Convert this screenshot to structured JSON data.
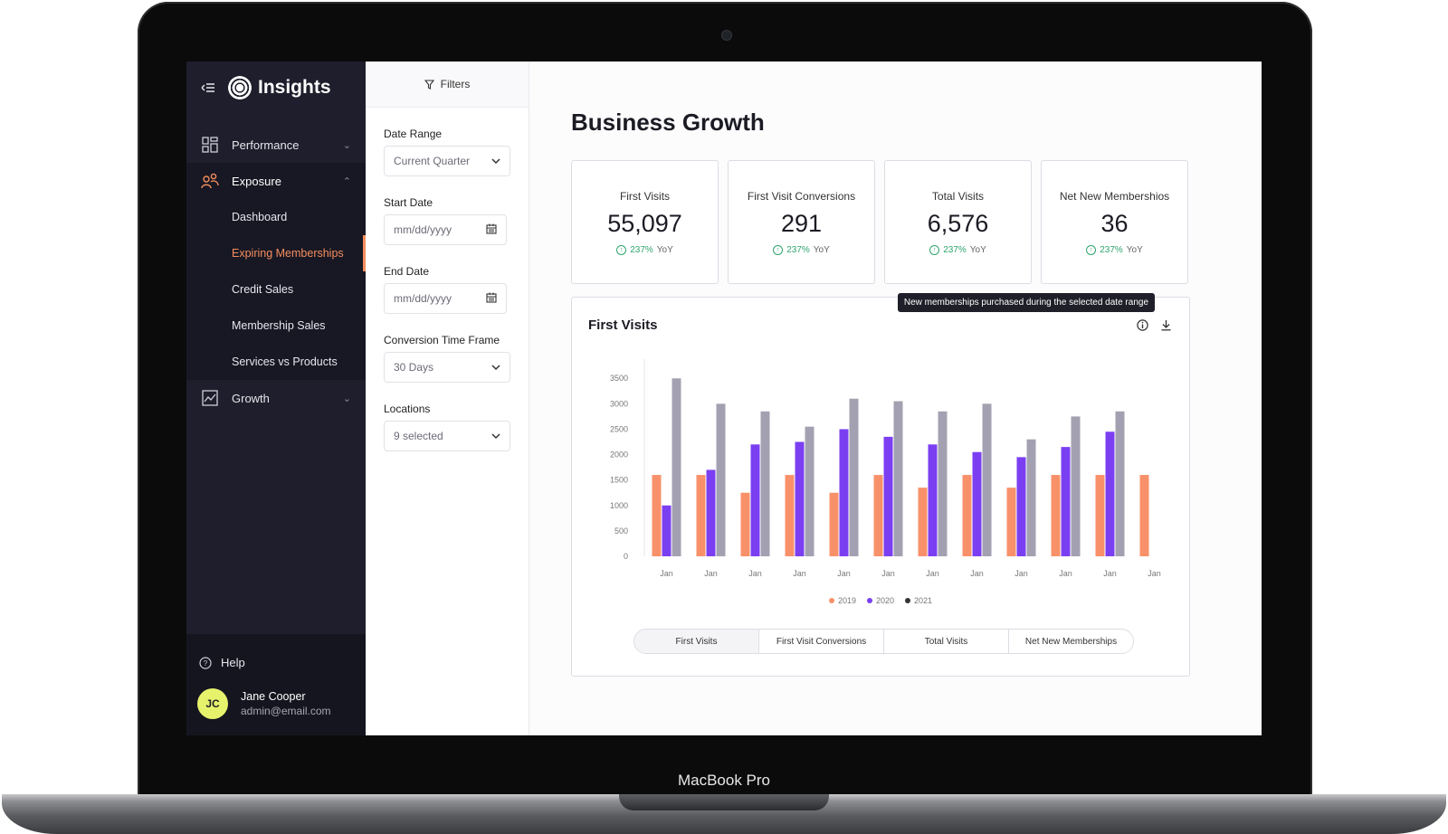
{
  "device": {
    "label": "MacBook Pro"
  },
  "app": {
    "name": "Insights"
  },
  "sidebar": {
    "sections": [
      {
        "label": "Performance",
        "icon": "grid-icon",
        "expanded": false
      },
      {
        "label": "Exposure",
        "icon": "people-icon",
        "expanded": true,
        "items": [
          "Dashboard",
          "Expiring Memberships",
          "Credit Sales",
          "Membership Sales",
          "Services vs Products"
        ],
        "active_item": "Expiring Memberships"
      },
      {
        "label": "Growth",
        "icon": "trend-icon",
        "expanded": false
      }
    ],
    "help_label": "Help",
    "user": {
      "initials": "JC",
      "name": "Jane Cooper",
      "email": "admin@email.com"
    }
  },
  "filters": {
    "title": "Filters",
    "date_range": {
      "label": "Date Range",
      "value": "Current Quarter"
    },
    "start_date": {
      "label": "Start Date",
      "placeholder": "mm/dd/yyyy"
    },
    "end_date": {
      "label": "End Date",
      "placeholder": "mm/dd/yyyy"
    },
    "conversion": {
      "label": "Conversion Time Frame",
      "value": "30 Days"
    },
    "locations": {
      "label": "Locations",
      "value": "9 selected"
    }
  },
  "main": {
    "title": "Business Growth",
    "kpis": [
      {
        "title": "First Visits",
        "value": "55,097",
        "delta": "237%",
        "delta_suffix": "YoY"
      },
      {
        "title": "First Visit Conversions",
        "value": "291",
        "delta": "237%",
        "delta_suffix": "YoY"
      },
      {
        "title": "Total Visits",
        "value": "6,576",
        "delta": "237%",
        "delta_suffix": "YoY"
      },
      {
        "title": "Net New Memberships",
        "display_title": "Net New Membershios",
        "value": "36",
        "delta": "237%",
        "delta_suffix": "YoY"
      }
    ],
    "chart_card": {
      "title": "First Visits",
      "tooltip": "New memberships purchased during the selected date range",
      "tabs": [
        "First Visits",
        "First Visit Conversions",
        "Total Visits",
        "Net New Memberships"
      ],
      "active_tab": 0
    }
  },
  "colors": {
    "accent": "#f48d5d",
    "s2019": "#f8916a",
    "s2020": "#7b3ff2",
    "s2021": "#a3a1b1",
    "positive": "#2fa56d"
  },
  "chart_data": {
    "type": "bar",
    "categories": [
      "Jan",
      "Jan",
      "Jan",
      "Jan",
      "Jan",
      "Jan",
      "Jan",
      "Jan",
      "Jan",
      "Jan",
      "Jan",
      "Jan"
    ],
    "series": [
      {
        "name": "2019",
        "values": [
          1600,
          1600,
          1250,
          1600,
          1250,
          1600,
          1350,
          1600,
          1350,
          1600,
          1600,
          1600
        ]
      },
      {
        "name": "2020",
        "values": [
          1000,
          1700,
          2200,
          2250,
          2500,
          2350,
          2200,
          2050,
          1950,
          2150,
          2450,
          null
        ]
      },
      {
        "name": "2021",
        "values": [
          3500,
          3000,
          2850,
          2550,
          3100,
          3050,
          2850,
          3000,
          2300,
          2750,
          2850,
          null
        ]
      }
    ],
    "y_ticks": [
      0,
      500,
      1000,
      1500,
      2000,
      2500,
      3000,
      3500
    ],
    "ylim": [
      0,
      3700
    ],
    "legend": "bottom-center",
    "grid": false
  }
}
